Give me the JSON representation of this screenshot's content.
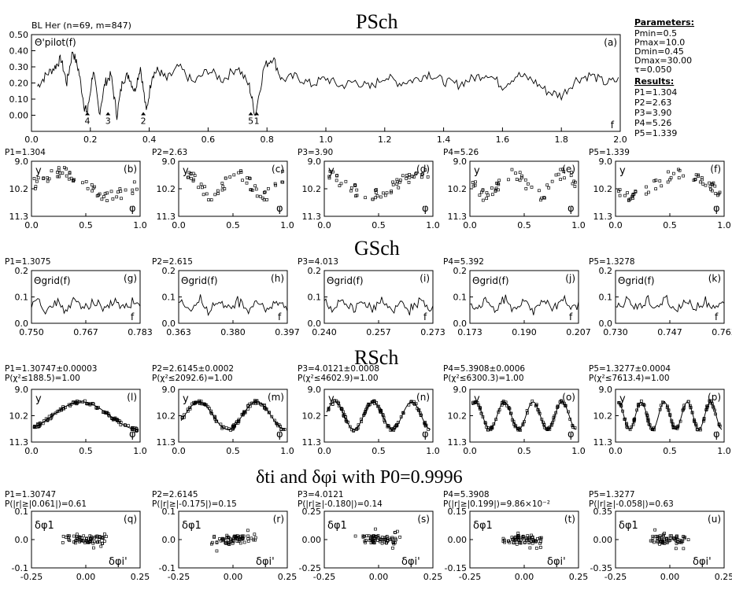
{
  "header": {
    "object": "BL Her (n=69, m=847)",
    "pilot_label": "Θ'pilot(f)",
    "panel_letter": "(a)",
    "freq_symbol": "f",
    "period_marks": [
      "4",
      "3",
      "2",
      "5",
      "1"
    ]
  },
  "parameters": {
    "heading": "Parameters:",
    "items": [
      "Pmin=0.5",
      "Pmax=10.0",
      "Dmin=0.45",
      "Dmax=30.00",
      "τ=0.050"
    ]
  },
  "results": {
    "heading": "Results:",
    "items": [
      "P1=1.304",
      "P2=2.63",
      "P3=3.90",
      "P4=5.26",
      "P5=1.339"
    ]
  },
  "section_titles": {
    "psch": "PSch",
    "gsch": "GSch",
    "rsch": "RSch",
    "delta": "δti and δφi with P0=0.9996"
  },
  "axis_symbols": {
    "y": "y",
    "phi": "φ",
    "f": "f",
    "theta_grid": "Θgrid(f)",
    "delta_phi": "δφ1",
    "delta_phi_prime": "δφi'"
  },
  "chart_data": [
    {
      "id": "a",
      "type": "line",
      "xlim": [
        0.0,
        2.0
      ],
      "ylim": [
        -0.1,
        0.5
      ],
      "xticks": [
        "0.0",
        "0.2",
        "0.4",
        "0.6",
        "0.8",
        "1.0",
        "1.2",
        "1.4",
        "1.6",
        "1.8",
        "2.0"
      ],
      "yticks": [
        "0.00",
        "0.10",
        "0.20",
        "0.30",
        "0.40",
        "0.50"
      ],
      "x": [
        0.02,
        0.05,
        0.08,
        0.1,
        0.12,
        0.14,
        0.16,
        0.18,
        0.19,
        0.21,
        0.23,
        0.25,
        0.27,
        0.29,
        0.31,
        0.33,
        0.35,
        0.37,
        0.39,
        0.41,
        0.43,
        0.46,
        0.5,
        0.55,
        0.6,
        0.65,
        0.7,
        0.74,
        0.76,
        0.79,
        0.82,
        0.85,
        0.9,
        0.95,
        1.0,
        1.05,
        1.1,
        1.15,
        1.2,
        1.25,
        1.3,
        1.35,
        1.4,
        1.45,
        1.5,
        1.55,
        1.6,
        1.65,
        1.7,
        1.75,
        1.8,
        1.85,
        1.9,
        1.95,
        2.0
      ],
      "y": [
        0.18,
        0.25,
        0.3,
        0.35,
        0.2,
        0.4,
        0.28,
        0.05,
        0.02,
        0.28,
        0.01,
        0.2,
        0.25,
        0.0,
        0.22,
        0.25,
        0.15,
        0.3,
        0.02,
        0.25,
        0.28,
        0.22,
        0.3,
        0.2,
        0.28,
        0.22,
        0.3,
        0.18,
        0.0,
        0.3,
        0.36,
        0.22,
        0.24,
        0.19,
        0.23,
        0.18,
        0.21,
        0.17,
        0.24,
        0.2,
        0.22,
        0.26,
        0.21,
        0.19,
        0.23,
        0.26,
        0.18,
        0.25,
        0.22,
        0.15,
        0.12,
        0.22,
        0.25,
        0.2,
        0.22
      ]
    },
    {
      "id": "b-f",
      "type": "scatter",
      "panels": [
        {
          "letter": "(b)",
          "period": "P1=1.304",
          "ylim_labels": [
            "9.0",
            "10.2",
            "11.3"
          ],
          "xticks": [
            "0.0",
            "0.5",
            "1.0"
          ]
        },
        {
          "letter": "(c)",
          "period": "P2=2.63",
          "ylim_labels": [
            "9.0",
            "10.2",
            "11.3"
          ],
          "xticks": [
            "0.0",
            "0.5",
            "1.0"
          ]
        },
        {
          "letter": "(d)",
          "period": "P3=3.90",
          "ylim_labels": [
            "9.0",
            "10.2",
            "11.3"
          ],
          "xticks": [
            "0.0",
            "0.5",
            "1.0"
          ]
        },
        {
          "letter": "(e)",
          "period": "P4=5.26",
          "ylim_labels": [
            "9.0",
            "10.2",
            "11.3"
          ],
          "xticks": [
            "0.0",
            "0.5",
            "1.0"
          ]
        },
        {
          "letter": "(f)",
          "period": "P5=1.339",
          "ylim_labels": [
            "9.0",
            "10.2",
            "11.3"
          ],
          "xticks": [
            "0.0",
            "0.5",
            "1.0"
          ]
        }
      ]
    },
    {
      "id": "g-k",
      "type": "line",
      "panels": [
        {
          "letter": "(g)",
          "period": "P1=1.3075",
          "yticks": [
            "0.2",
            "0.1",
            "0.0"
          ],
          "xticks": [
            "0.750",
            "0.767",
            "0.783"
          ],
          "xlim": [
            0.75,
            0.783
          ]
        },
        {
          "letter": "(h)",
          "period": "P2=2.615",
          "yticks": [
            "0.2",
            "0.1",
            "0.0"
          ],
          "xticks": [
            "0.363",
            "0.380",
            "0.397"
          ],
          "xlim": [
            0.363,
            0.397
          ]
        },
        {
          "letter": "(i)",
          "period": "P3=4.013",
          "yticks": [
            "0.2",
            "0.1",
            "0.0"
          ],
          "xticks": [
            "0.240",
            "0.257",
            "0.273"
          ],
          "xlim": [
            0.24,
            0.273
          ]
        },
        {
          "letter": "(j)",
          "period": "P4=5.392",
          "yticks": [
            "0.2",
            "0.1",
            "0.0"
          ],
          "xticks": [
            "0.173",
            "0.190",
            "0.207"
          ],
          "xlim": [
            0.173,
            0.207
          ]
        },
        {
          "letter": "(k)",
          "period": "P5=1.3278",
          "yticks": [
            "0.2",
            "0.1",
            "0.0"
          ],
          "xticks": [
            "0.730",
            "0.747",
            "0.763"
          ],
          "xlim": [
            0.73,
            0.763
          ]
        }
      ]
    },
    {
      "id": "l-p",
      "type": "scatter",
      "panels": [
        {
          "letter": "(l)",
          "period": "P1=1.30747±0.00003",
          "chi": "P(χ²≤188.5)=1.00",
          "ylim_labels": [
            "9.0",
            "10.2",
            "11.3"
          ],
          "xticks": [
            "0.0",
            "0.5",
            "1.0"
          ]
        },
        {
          "letter": "(m)",
          "period": "P2=2.6145±0.0002",
          "chi": "P(χ²≤2092.6)=1.00",
          "ylim_labels": [
            "9.0",
            "10.2",
            "11.3"
          ],
          "xticks": [
            "0.0",
            "0.5",
            "1.0"
          ]
        },
        {
          "letter": "(n)",
          "period": "P3=4.0121±0.0008",
          "chi": "P(χ²≤4602.9)=1.00",
          "ylim_labels": [
            "9.0",
            "10.2",
            "11.3"
          ],
          "xticks": [
            "0.0",
            "0.5",
            "1.0"
          ]
        },
        {
          "letter": "(o)",
          "period": "P4=5.3908±0.0006",
          "chi": "P(χ²≤6300.3)=1.00",
          "ylim_labels": [
            "9.0",
            "10.2",
            "11.3"
          ],
          "xticks": [
            "0.0",
            "0.5",
            "1.0"
          ]
        },
        {
          "letter": "(p)",
          "period": "P5=1.3277±0.0004",
          "chi": "P(χ²≤7613.4)=1.00",
          "ylim_labels": [
            "9.0",
            "10.2",
            "11.3"
          ],
          "xticks": [
            "0.0",
            "0.5",
            "1.0"
          ]
        }
      ]
    },
    {
      "id": "q-u",
      "type": "scatter",
      "panels": [
        {
          "letter": "(q)",
          "period": "P1=1.30747",
          "prob": "P(|r|≥|0.061|)=0.61",
          "yticks": [
            "0.1",
            "0.0",
            "-0.1"
          ],
          "xticks": [
            "-0.25",
            "0.00",
            "0.25"
          ]
        },
        {
          "letter": "(r)",
          "period": "P2=2.6145",
          "prob": "P(|r|≥|-0.175|)=0.15",
          "yticks": [
            "0.1",
            "0.0",
            "-0.1"
          ],
          "xticks": [
            "-0.25",
            "0.00",
            "0.25"
          ]
        },
        {
          "letter": "(s)",
          "period": "P3=4.0121",
          "prob": "P(|r|≥|-0.180|)=0.14",
          "yticks": [
            "0.25",
            "0.00",
            "-0.25"
          ],
          "xticks": [
            "-0.25",
            "0.00",
            "0.25"
          ]
        },
        {
          "letter": "(t)",
          "period": "P4=5.3908",
          "prob": "P(|r|≥|0.199|)=9.86×10⁻²",
          "yticks": [
            "0.15",
            "0.00",
            "-0.15"
          ],
          "xticks": [
            "-0.25",
            "0.00",
            "0.25"
          ]
        },
        {
          "letter": "(u)",
          "period": "P5=1.3277",
          "prob": "P(|r|≥|-0.058|)=0.63",
          "yticks": [
            "0.35",
            "0.00",
            "-0.35"
          ],
          "xticks": [
            "-0.25",
            "0.00",
            "0.25"
          ]
        }
      ]
    }
  ]
}
